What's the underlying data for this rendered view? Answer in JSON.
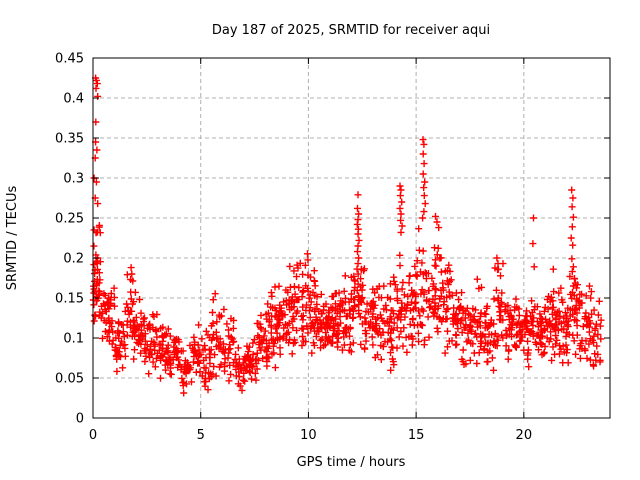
{
  "chart_data": {
    "type": "scatter",
    "title": "Day 187 of 2025, SRMTID for receiver aqui",
    "xlabel": "GPS time / hours",
    "ylabel": "SRMTID / TECUs",
    "xlim": [
      0,
      24
    ],
    "ylim": [
      0,
      0.45
    ],
    "xticks": [
      0,
      5,
      10,
      15,
      20
    ],
    "xtick_labels": [
      "0",
      "5",
      "10",
      "15",
      "20"
    ],
    "yticks": [
      0,
      0.05,
      0.1,
      0.15,
      0.2,
      0.25,
      0.3,
      0.35,
      0.4,
      0.45
    ],
    "ytick_labels": [
      "0",
      "0.05",
      "0.1",
      "0.15",
      "0.2",
      "0.25",
      "0.3",
      "0.35",
      "0.4",
      "0.45"
    ],
    "grid": true,
    "legend": "none",
    "marker": "plus",
    "marker_color": "#ff0000",
    "grid_color": "#b0b0b0",
    "axis_color": "#000000",
    "background_color": "#ffffff",
    "band_format": [
      "x_start_hours",
      "x_end_hours",
      "y_min_TECUs",
      "y_max_TECUs",
      "n_points"
    ],
    "band_segments": [
      [
        0.0,
        0.35,
        0.09,
        0.26,
        45
      ],
      [
        0.35,
        1.0,
        0.08,
        0.175,
        40
      ],
      [
        1.0,
        1.5,
        0.05,
        0.135,
        30
      ],
      [
        1.5,
        2.0,
        0.06,
        0.185,
        35
      ],
      [
        2.0,
        2.5,
        0.055,
        0.165,
        32
      ],
      [
        2.5,
        3.0,
        0.05,
        0.135,
        30
      ],
      [
        3.0,
        3.5,
        0.045,
        0.125,
        30
      ],
      [
        3.5,
        4.0,
        0.04,
        0.115,
        30
      ],
      [
        4.0,
        4.5,
        0.03,
        0.09,
        26
      ],
      [
        4.5,
        5.0,
        0.04,
        0.125,
        26
      ],
      [
        5.0,
        5.5,
        0.03,
        0.12,
        30
      ],
      [
        5.5,
        6.1,
        0.05,
        0.16,
        32
      ],
      [
        6.1,
        6.6,
        0.04,
        0.13,
        26
      ],
      [
        6.6,
        7.1,
        0.03,
        0.09,
        26
      ],
      [
        7.1,
        7.6,
        0.04,
        0.105,
        30
      ],
      [
        7.6,
        8.1,
        0.05,
        0.14,
        32
      ],
      [
        8.1,
        8.6,
        0.06,
        0.175,
        34
      ],
      [
        8.6,
        9.1,
        0.07,
        0.19,
        34
      ],
      [
        9.1,
        9.6,
        0.075,
        0.21,
        34
      ],
      [
        9.6,
        10.1,
        0.075,
        0.215,
        34
      ],
      [
        10.1,
        10.6,
        0.07,
        0.185,
        36
      ],
      [
        10.6,
        11.1,
        0.07,
        0.165,
        36
      ],
      [
        11.1,
        11.6,
        0.075,
        0.17,
        36
      ],
      [
        11.6,
        12.1,
        0.08,
        0.185,
        36
      ],
      [
        12.1,
        12.6,
        0.08,
        0.21,
        34
      ],
      [
        12.6,
        13.1,
        0.07,
        0.165,
        34
      ],
      [
        13.1,
        13.6,
        0.06,
        0.175,
        30
      ],
      [
        13.6,
        14.1,
        0.05,
        0.185,
        30
      ],
      [
        14.1,
        14.6,
        0.065,
        0.22,
        32
      ],
      [
        14.6,
        15.1,
        0.07,
        0.23,
        32
      ],
      [
        15.1,
        15.6,
        0.08,
        0.24,
        32
      ],
      [
        15.6,
        16.1,
        0.08,
        0.235,
        32
      ],
      [
        16.1,
        16.6,
        0.075,
        0.22,
        32
      ],
      [
        16.6,
        17.1,
        0.07,
        0.18,
        30
      ],
      [
        17.1,
        17.6,
        0.06,
        0.16,
        30
      ],
      [
        17.6,
        18.1,
        0.06,
        0.195,
        30
      ],
      [
        18.1,
        18.6,
        0.05,
        0.155,
        30
      ],
      [
        18.6,
        19.1,
        0.065,
        0.2,
        30
      ],
      [
        19.1,
        19.6,
        0.06,
        0.16,
        30
      ],
      [
        19.6,
        20.1,
        0.07,
        0.155,
        30
      ],
      [
        20.1,
        20.6,
        0.06,
        0.16,
        30
      ],
      [
        20.6,
        21.1,
        0.07,
        0.155,
        34
      ],
      [
        21.1,
        21.6,
        0.07,
        0.17,
        34
      ],
      [
        21.6,
        22.1,
        0.06,
        0.175,
        34
      ],
      [
        22.1,
        22.6,
        0.07,
        0.19,
        30
      ],
      [
        22.6,
        23.1,
        0.05,
        0.17,
        30
      ],
      [
        23.1,
        23.6,
        0.04,
        0.17,
        24
      ]
    ],
    "outlier_points": [
      [
        0.12,
        0.425
      ],
      [
        0.16,
        0.422
      ],
      [
        0.2,
        0.418
      ],
      [
        0.14,
        0.412
      ],
      [
        0.22,
        0.402
      ],
      [
        0.13,
        0.37
      ],
      [
        0.12,
        0.345
      ],
      [
        0.18,
        0.335
      ],
      [
        0.1,
        0.325
      ],
      [
        0.05,
        0.3
      ],
      [
        0.16,
        0.295
      ],
      [
        0.1,
        0.275
      ],
      [
        0.22,
        0.268
      ],
      [
        1.77,
        0.188
      ],
      [
        1.8,
        0.18
      ],
      [
        12.3,
        0.279
      ],
      [
        12.28,
        0.262
      ],
      [
        12.33,
        0.255
      ],
      [
        12.3,
        0.248
      ],
      [
        12.27,
        0.242
      ],
      [
        12.32,
        0.236
      ],
      [
        12.3,
        0.23
      ],
      [
        12.35,
        0.222
      ],
      [
        12.3,
        0.215
      ],
      [
        12.28,
        0.208
      ],
      [
        12.33,
        0.2
      ],
      [
        12.3,
        0.193
      ],
      [
        14.25,
        0.29
      ],
      [
        14.3,
        0.285
      ],
      [
        14.27,
        0.278
      ],
      [
        14.33,
        0.27
      ],
      [
        14.25,
        0.262
      ],
      [
        14.3,
        0.255
      ],
      [
        14.28,
        0.247
      ],
      [
        14.35,
        0.24
      ],
      [
        14.3,
        0.232
      ],
      [
        15.32,
        0.348
      ],
      [
        15.36,
        0.342
      ],
      [
        15.33,
        0.33
      ],
      [
        15.37,
        0.318
      ],
      [
        15.33,
        0.305
      ],
      [
        15.4,
        0.295
      ],
      [
        15.35,
        0.288
      ],
      [
        15.38,
        0.278
      ],
      [
        15.42,
        0.268
      ],
      [
        15.36,
        0.258
      ],
      [
        15.3,
        0.25
      ],
      [
        15.9,
        0.252
      ],
      [
        15.97,
        0.245
      ],
      [
        16.05,
        0.238
      ],
      [
        18.75,
        0.2
      ],
      [
        18.8,
        0.193
      ],
      [
        18.82,
        0.186
      ],
      [
        20.45,
        0.25
      ],
      [
        20.42,
        0.218
      ],
      [
        20.48,
        0.189
      ],
      [
        21.37,
        0.186
      ],
      [
        22.22,
        0.285
      ],
      [
        22.28,
        0.275
      ],
      [
        22.24,
        0.264
      ],
      [
        22.3,
        0.251
      ],
      [
        22.25,
        0.239
      ],
      [
        22.2,
        0.225
      ],
      [
        22.27,
        0.216
      ],
      [
        22.23,
        0.199
      ],
      [
        22.3,
        0.189
      ],
      [
        22.25,
        0.183
      ],
      [
        22.35,
        0.174
      ],
      [
        22.3,
        0.165
      ],
      [
        22.26,
        0.157
      ]
    ]
  }
}
